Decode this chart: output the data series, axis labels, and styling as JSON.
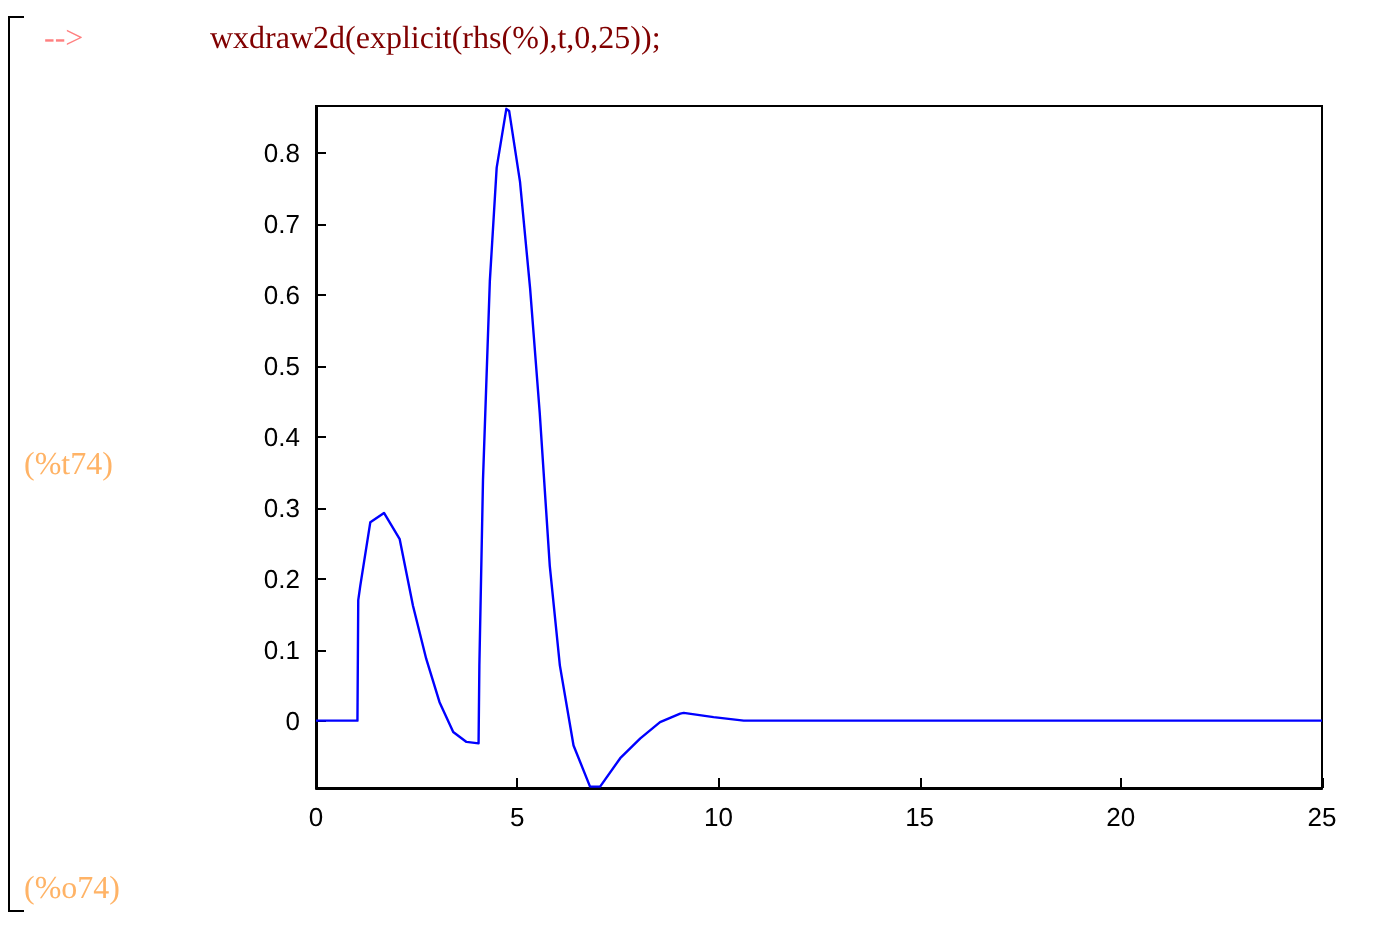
{
  "chart_data": {
    "type": "line",
    "annotations": [
      "-->",
      "wxdraw2d(explicit(rhs(%),t,0,25));",
      "(%t74)",
      "(%o74)"
    ],
    "x": [
      0,
      1.03,
      1.05,
      1.1,
      1.35,
      1.69,
      2.08,
      2.41,
      2.74,
      3.07,
      3.41,
      3.74,
      4.04,
      4.06,
      4.15,
      4.32,
      4.49,
      4.73,
      4.8,
      5.07,
      5.32,
      5.56,
      5.81,
      6.06,
      6.4,
      6.81,
      7.06,
      7.56,
      8.06,
      8.55,
      9.05,
      9.14,
      9.88,
      10.63,
      25
    ],
    "series": [
      {
        "color": "#0000ff",
        "values": [
          0,
          0,
          0.17,
          0.19,
          0.28,
          0.293,
          0.256,
          0.162,
          0.087,
          0.026,
          -0.016,
          -0.03,
          -0.032,
          0.078,
          0.34,
          0.62,
          0.78,
          0.863,
          0.86,
          0.76,
          0.61,
          0.434,
          0.218,
          0.078,
          -0.035,
          -0.093,
          -0.093,
          -0.053,
          -0.025,
          -0.002,
          0.01,
          0.011,
          0.005,
          0,
          0
        ]
      }
    ],
    "xlim": [
      0,
      25
    ],
    "xticks": [
      0,
      5,
      10,
      15,
      20,
      25
    ],
    "ylim": [
      -0.095,
      0.867
    ],
    "yticks": [
      0,
      0.1,
      0.2,
      0.3,
      0.4,
      0.5,
      0.6,
      0.7,
      0.8
    ],
    "grid": false,
    "marker": "none",
    "line_style": "solid"
  }
}
